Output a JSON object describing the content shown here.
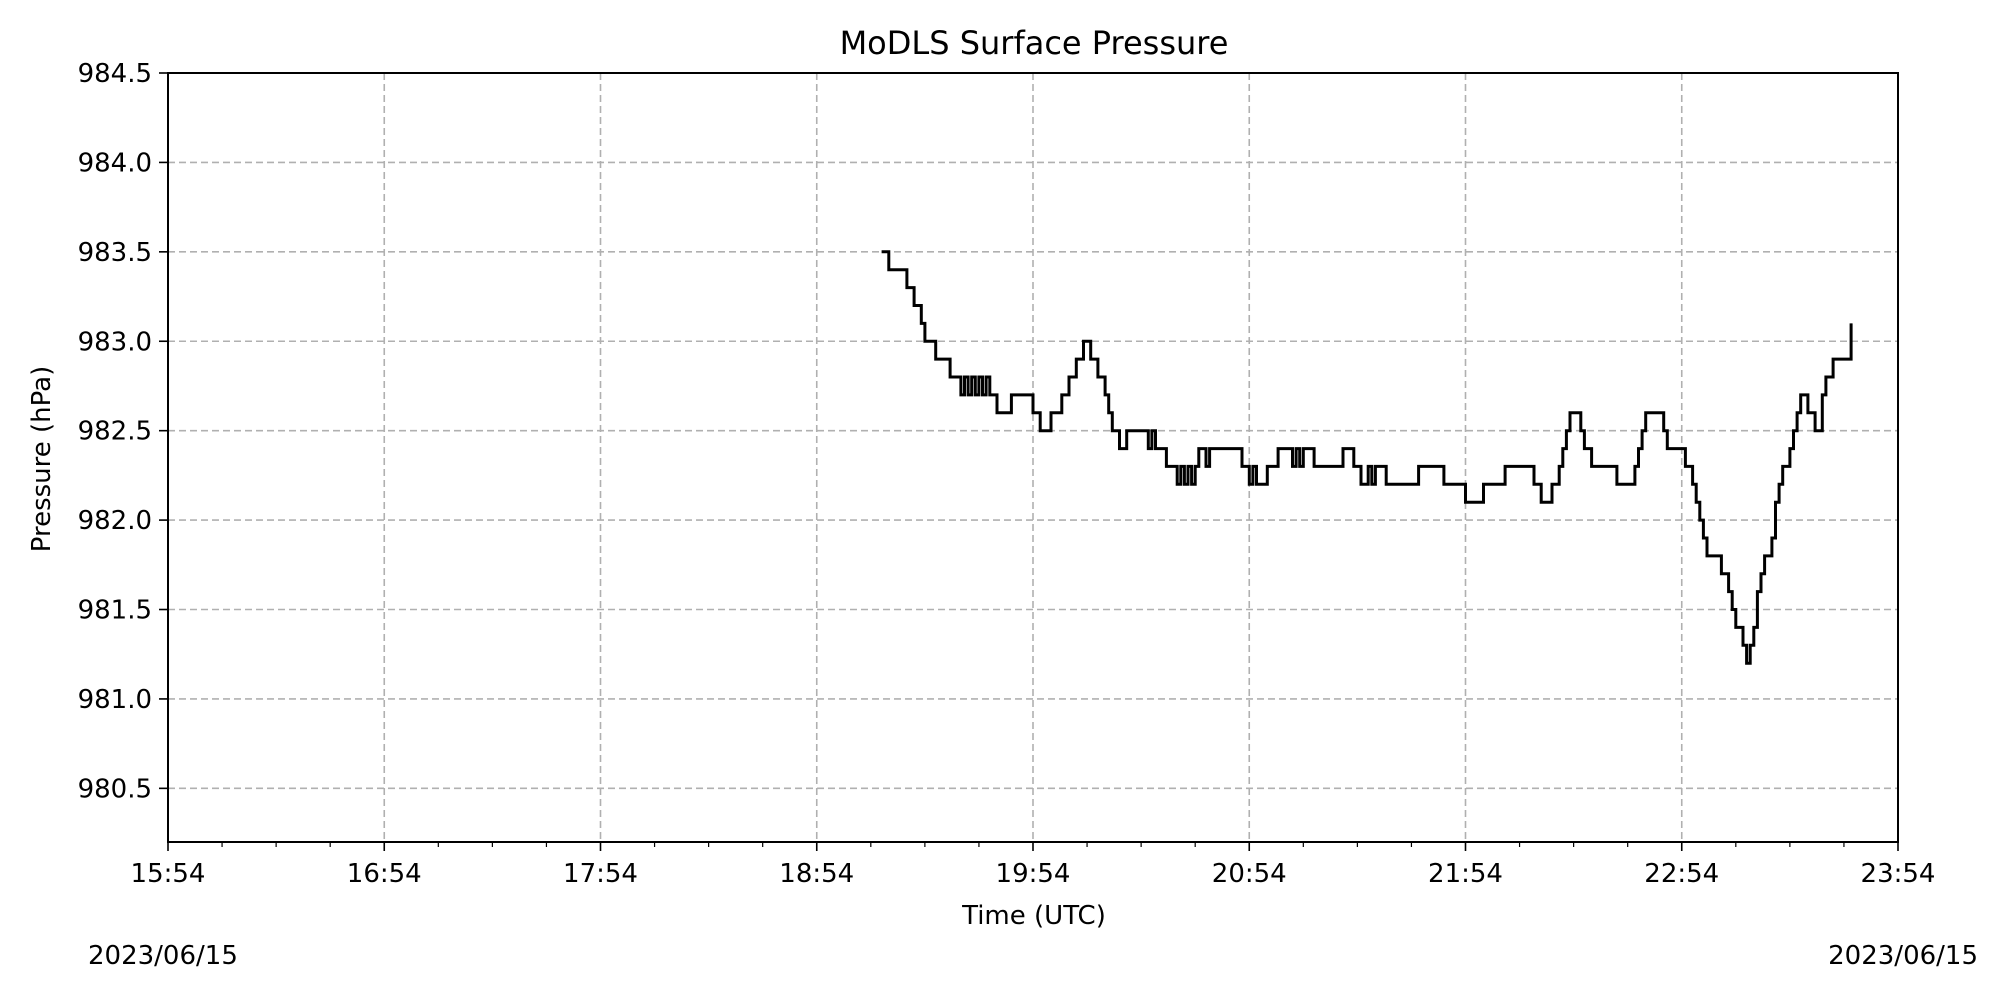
{
  "chart_data": {
    "type": "line",
    "title": "MoDLS Surface Pressure",
    "xlabel": "Time (UTC)",
    "ylabel": "Pressure (hPa)",
    "x_ticks": [
      "15:54",
      "16:54",
      "17:54",
      "18:54",
      "19:54",
      "20:54",
      "21:54",
      "22:54",
      "23:54"
    ],
    "xlim": [
      "15:54",
      "23:54"
    ],
    "y_ticks": [
      "980.5",
      "981.0",
      "981.5",
      "982.0",
      "982.5",
      "983.0",
      "983.5",
      "984.0",
      "984.5"
    ],
    "ylim": [
      980.2,
      984.5
    ],
    "grid": "dashed",
    "date_start": "2023/06/15",
    "date_end": "2023/06/15",
    "series": [
      {
        "color": "#000000",
        "step": true,
        "points": [
          [
            "19:12",
            983.5
          ],
          [
            "19:14",
            983.4
          ],
          [
            "19:19",
            983.3
          ],
          [
            "19:21",
            983.2
          ],
          [
            "19:23",
            983.1
          ],
          [
            "19:24",
            983.0
          ],
          [
            "19:27",
            982.9
          ],
          [
            "19:31",
            982.8
          ],
          [
            "19:34",
            982.7
          ],
          [
            "19:35",
            982.8
          ],
          [
            "19:36",
            982.7
          ],
          [
            "19:37",
            982.8
          ],
          [
            "19:38",
            982.7
          ],
          [
            "19:39",
            982.8
          ],
          [
            "19:40",
            982.7
          ],
          [
            "19:41",
            982.8
          ],
          [
            "19:42",
            982.7
          ],
          [
            "19:44",
            982.6
          ],
          [
            "19:48",
            982.7
          ],
          [
            "19:54",
            982.6
          ],
          [
            "19:56",
            982.5
          ],
          [
            "19:59",
            982.6
          ],
          [
            "20:02",
            982.7
          ],
          [
            "20:04",
            982.8
          ],
          [
            "20:06",
            982.9
          ],
          [
            "20:08",
            983.0
          ],
          [
            "20:10",
            982.9
          ],
          [
            "20:12",
            982.8
          ],
          [
            "20:14",
            982.7
          ],
          [
            "20:15",
            982.6
          ],
          [
            "20:16",
            982.5
          ],
          [
            "20:18",
            982.4
          ],
          [
            "20:20",
            982.5
          ],
          [
            "20:26",
            982.4
          ],
          [
            "20:27",
            982.5
          ],
          [
            "20:28",
            982.4
          ],
          [
            "20:31",
            982.3
          ],
          [
            "20:34",
            982.2
          ],
          [
            "20:35",
            982.3
          ],
          [
            "20:36",
            982.2
          ],
          [
            "20:37",
            982.3
          ],
          [
            "20:38",
            982.2
          ],
          [
            "20:39",
            982.3
          ],
          [
            "20:40",
            982.4
          ],
          [
            "20:42",
            982.3
          ],
          [
            "20:43",
            982.4
          ],
          [
            "20:52",
            982.3
          ],
          [
            "20:54",
            982.2
          ],
          [
            "20:55",
            982.3
          ],
          [
            "20:56",
            982.2
          ],
          [
            "20:59",
            982.3
          ],
          [
            "21:02",
            982.4
          ],
          [
            "21:06",
            982.3
          ],
          [
            "21:07",
            982.4
          ],
          [
            "21:08",
            982.3
          ],
          [
            "21:09",
            982.4
          ],
          [
            "21:12",
            982.3
          ],
          [
            "21:20",
            982.4
          ],
          [
            "21:23",
            982.3
          ],
          [
            "21:25",
            982.2
          ],
          [
            "21:27",
            982.3
          ],
          [
            "21:28",
            982.2
          ],
          [
            "21:29",
            982.3
          ],
          [
            "21:32",
            982.2
          ],
          [
            "21:41",
            982.3
          ],
          [
            "21:48",
            982.2
          ],
          [
            "21:54",
            982.1
          ],
          [
            "21:59",
            982.2
          ],
          [
            "22:05",
            982.3
          ],
          [
            "22:13",
            982.2
          ],
          [
            "22:15",
            982.1
          ],
          [
            "22:18",
            982.2
          ],
          [
            "22:20",
            982.3
          ],
          [
            "22:21",
            982.4
          ],
          [
            "22:22",
            982.5
          ],
          [
            "22:23",
            982.6
          ],
          [
            "22:26",
            982.5
          ],
          [
            "22:27",
            982.4
          ],
          [
            "22:29",
            982.3
          ],
          [
            "22:36",
            982.2
          ],
          [
            "22:41",
            982.3
          ],
          [
            "22:42",
            982.4
          ],
          [
            "22:43",
            982.5
          ],
          [
            "22:44",
            982.6
          ],
          [
            "22:49",
            982.5
          ],
          [
            "22:50",
            982.4
          ],
          [
            "22:55",
            982.3
          ],
          [
            "22:57",
            982.2
          ],
          [
            "22:58",
            982.1
          ],
          [
            "22:59",
            982.0
          ],
          [
            "23:00",
            981.9
          ],
          [
            "23:01",
            981.8
          ],
          [
            "23:05",
            981.7
          ],
          [
            "23:07",
            981.6
          ],
          [
            "23:08",
            981.5
          ],
          [
            "23:09",
            981.4
          ],
          [
            "23:11",
            981.3
          ],
          [
            "23:12",
            981.2
          ],
          [
            "23:13",
            981.3
          ],
          [
            "23:14",
            981.4
          ],
          [
            "23:15",
            981.5
          ],
          [
            "23:15",
            981.6
          ],
          [
            "23:16",
            981.7
          ],
          [
            "23:17",
            981.8
          ],
          [
            "23:19",
            981.9
          ],
          [
            "23:20",
            982.0
          ],
          [
            "23:20",
            982.1
          ],
          [
            "23:21",
            982.2
          ],
          [
            "23:22",
            982.3
          ],
          [
            "23:24",
            982.4
          ],
          [
            "23:25",
            982.5
          ],
          [
            "23:26",
            982.6
          ],
          [
            "23:27",
            982.7
          ],
          [
            "23:29",
            982.6
          ],
          [
            "23:31",
            982.5
          ],
          [
            "23:33",
            982.6
          ],
          [
            "23:33",
            982.7
          ],
          [
            "23:34",
            982.8
          ],
          [
            "23:36",
            982.9
          ],
          [
            "23:41",
            983.0
          ],
          [
            "23:41",
            983.1
          ]
        ]
      }
    ]
  }
}
